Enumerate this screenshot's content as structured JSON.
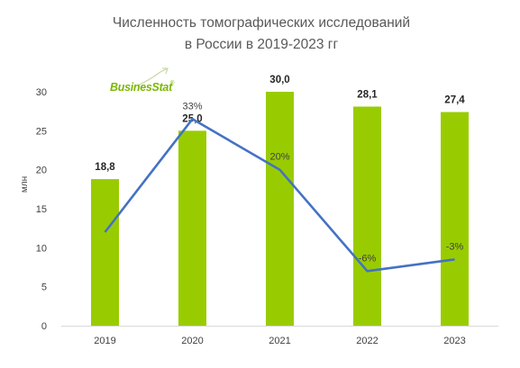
{
  "logo": {
    "text": "BusinesStat",
    "mark": "®",
    "color": "#7ab800"
  },
  "chart_data": {
    "type": "bar",
    "title_lines": [
      "Численность томографических исследований",
      "в России в 2019-2023 гг"
    ],
    "ylabel": "млн",
    "xlabel": "",
    "categories": [
      "2019",
      "2020",
      "2021",
      "2022",
      "2023"
    ],
    "ylim": [
      0,
      30
    ],
    "yticks": [
      0,
      5,
      10,
      15,
      20,
      25,
      30
    ],
    "grid": false,
    "legend": "none",
    "series": [
      {
        "type": "bar",
        "values": [
          18.8,
          25.0,
          30.0,
          28.1,
          27.4
        ],
        "labels": [
          "18,8",
          "25,0",
          "30,0",
          "28,1",
          "27,4"
        ],
        "color": "#99cc00"
      },
      {
        "type": "line",
        "secondary_axis": true,
        "secondary_ylim": [
          -20,
          40
        ],
        "values": [
          null,
          33,
          20,
          -6,
          -3
        ],
        "labels": [
          "",
          "33%",
          "20%",
          "-6%",
          "-3%"
        ],
        "color": "#4472c4"
      }
    ]
  }
}
